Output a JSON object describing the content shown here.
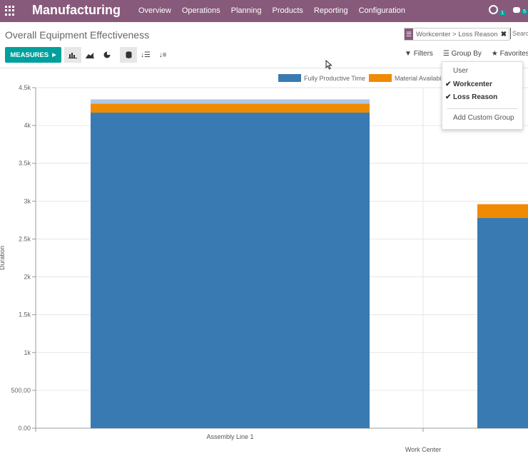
{
  "nav": {
    "app_title": "Manufacturing",
    "menu": [
      "Overview",
      "Operations",
      "Planning",
      "Products",
      "Reporting",
      "Configuration"
    ],
    "activity_count": "1",
    "message_count": "5"
  },
  "control_panel": {
    "title": "Overall Equipment Effectiveness",
    "facet_label": "Workcenter > Loss Reason",
    "search_placeholder": "Search...",
    "measures_label": "MEASURES",
    "filters_label": "Filters",
    "group_by_label": "Group By",
    "favorites_label": "Favorites"
  },
  "group_by_menu": {
    "items": [
      {
        "label": "User",
        "checked": false
      },
      {
        "label": "Workcenter",
        "checked": true
      },
      {
        "label": "Loss Reason",
        "checked": true
      }
    ],
    "custom_label": "Add Custom Group"
  },
  "colors": {
    "brand": "#875a7b",
    "accent": "#00a09d",
    "series_productive": "#3a7ab3",
    "series_material": "#f08a00",
    "series_other": "#aec7e8"
  },
  "chart_data": {
    "type": "bar",
    "stacked": true,
    "categories": [
      "Assembly Line 1",
      ""
    ],
    "xlabel": "Work Center",
    "ylabel": "Duration",
    "ylim": [
      0,
      4500
    ],
    "yticks": [
      "0.00",
      "500.00",
      "1k",
      "1.5k",
      "2k",
      "2.5k",
      "3k",
      "3.5k",
      "4k",
      "4.5k"
    ],
    "grid": true,
    "legend_position": "top-right",
    "series": [
      {
        "name": "Fully Productive Time",
        "values": [
          4170,
          2780
        ]
      },
      {
        "name": "Material Availability",
        "values": [
          120,
          180
        ]
      },
      {
        "name": "",
        "values": [
          55,
          0
        ]
      }
    ]
  }
}
